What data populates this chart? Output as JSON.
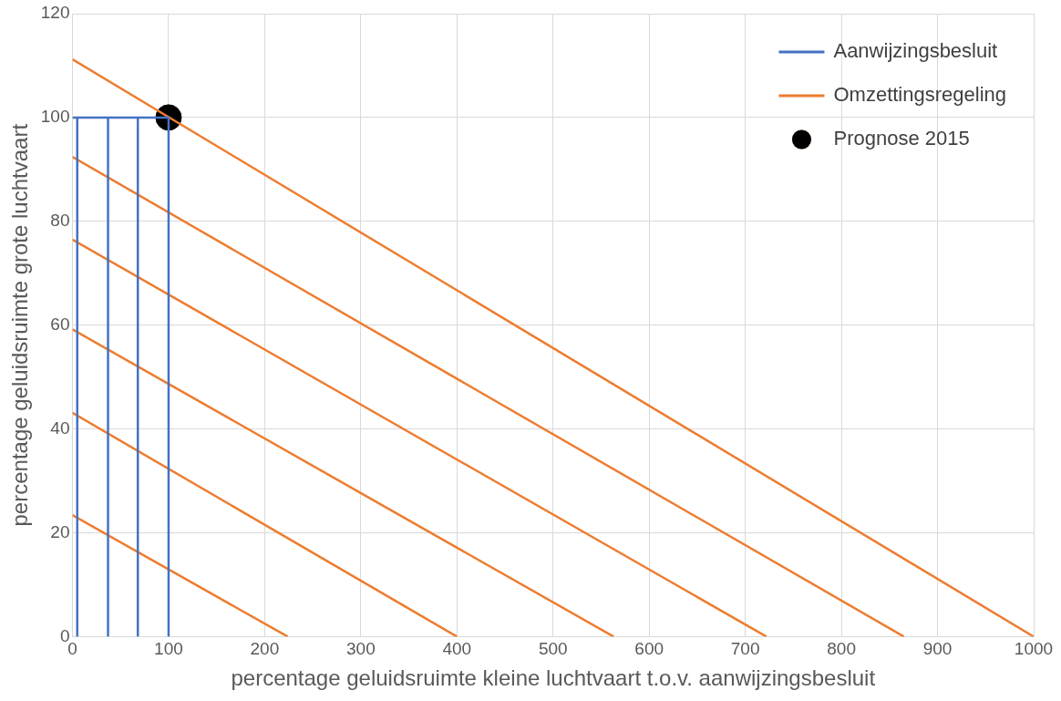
{
  "chart_data": {
    "type": "line",
    "xlabel": "percentage geluidsruimte kleine luchtvaart t.o.v. aanwijzingsbesluit",
    "ylabel": "percentage geluidsruimte grote luchtvaart",
    "xlim": [
      0,
      1000
    ],
    "xticks": [
      0,
      100,
      200,
      300,
      400,
      500,
      600,
      700,
      800,
      900,
      1000
    ],
    "ylim": [
      0,
      120
    ],
    "yticks": [
      0,
      20,
      40,
      60,
      80,
      100,
      120
    ],
    "grid": true,
    "legend": "top right",
    "marker": "none",
    "line_style": "solid",
    "series": [
      {
        "name": "Aanwijzingsbesluit",
        "color": "#4472c4",
        "x": [
          5,
          5,
          null,
          37,
          37,
          null,
          68,
          68,
          null,
          100,
          100,
          null,
          0,
          100
        ],
        "values": [
          0,
          100,
          null,
          0,
          100,
          null,
          0,
          100,
          null,
          0,
          100,
          null,
          100,
          100
        ]
      },
      {
        "name": "Omzettingsregeling",
        "color": "#ed7d31",
        "x": [
          0,
          224,
          null,
          0,
          400,
          null,
          0,
          563,
          null,
          0,
          722,
          null,
          0,
          865,
          null,
          0,
          1000
        ],
        "values": [
          23.4,
          0,
          null,
          43.1,
          0,
          null,
          59.2,
          0,
          null,
          76.5,
          0,
          null,
          92.4,
          0,
          null,
          111.2,
          0
        ]
      },
      {
        "name": "Prognose 2015",
        "type": "scatter",
        "color": "#000000",
        "marker": "circle",
        "x": [
          100
        ],
        "values": [
          100
        ]
      }
    ]
  }
}
